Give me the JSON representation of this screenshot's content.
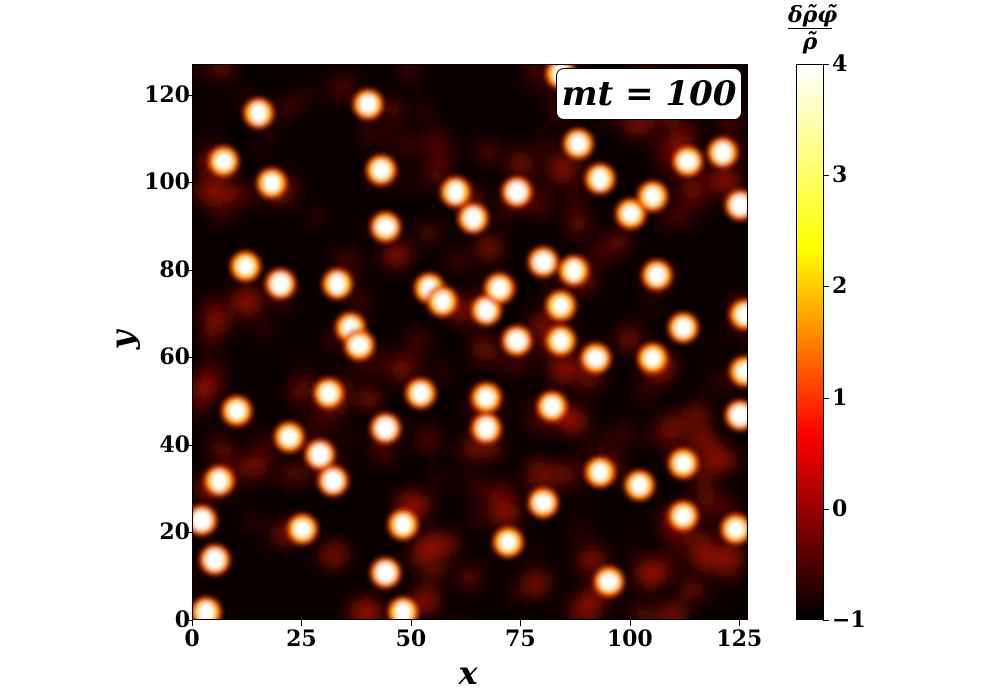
{
  "chart_data": {
    "type": "heatmap",
    "title": "",
    "xlabel": "x",
    "ylabel": "y",
    "xlim": [
      0,
      127
    ],
    "ylim": [
      0,
      127
    ],
    "x_ticks": [
      "0",
      "25",
      "50",
      "75",
      "100",
      "125"
    ],
    "y_ticks": [
      "0",
      "20",
      "40",
      "60",
      "80",
      "100",
      "120"
    ],
    "x_tick_values": [
      0,
      25,
      50,
      75,
      100,
      125
    ],
    "y_tick_values": [
      0,
      20,
      40,
      60,
      80,
      100,
      120
    ],
    "annotation": "mt = 100",
    "colorbar": {
      "label_numerator": "δρ̃φ̃",
      "label_denominator": "ρ̃",
      "range": [
        -1,
        4
      ],
      "ticks": [
        "4",
        "3",
        "2",
        "1",
        "0",
        "−1"
      ],
      "tick_values": [
        4,
        3,
        2,
        1,
        0,
        -1
      ],
      "colormap": "hot",
      "colors": [
        "#000000",
        "#ff0000",
        "#ffff00",
        "#ffffff"
      ]
    },
    "bright_peaks": [
      {
        "x": 3,
        "y": 2
      },
      {
        "x": 5,
        "y": 14
      },
      {
        "x": 6,
        "y": 32
      },
      {
        "x": 7,
        "y": 105
      },
      {
        "x": 10,
        "y": 48
      },
      {
        "x": 12,
        "y": 81
      },
      {
        "x": 15,
        "y": 116
      },
      {
        "x": 18,
        "y": 100
      },
      {
        "x": 20,
        "y": 77
      },
      {
        "x": 22,
        "y": 42
      },
      {
        "x": 25,
        "y": 21
      },
      {
        "x": 29,
        "y": 38
      },
      {
        "x": 31,
        "y": 52
      },
      {
        "x": 33,
        "y": 77
      },
      {
        "x": 36,
        "y": 67
      },
      {
        "x": 38,
        "y": 63
      },
      {
        "x": 40,
        "y": 118
      },
      {
        "x": 43,
        "y": 103
      },
      {
        "x": 44,
        "y": 11
      },
      {
        "x": 44,
        "y": 44
      },
      {
        "x": 44,
        "y": 90
      },
      {
        "x": 48,
        "y": 22
      },
      {
        "x": 48,
        "y": 2
      },
      {
        "x": 52,
        "y": 52
      },
      {
        "x": 54,
        "y": 76
      },
      {
        "x": 57,
        "y": 73
      },
      {
        "x": 60,
        "y": 98
      },
      {
        "x": 64,
        "y": 92
      },
      {
        "x": 67,
        "y": 71
      },
      {
        "x": 67,
        "y": 51
      },
      {
        "x": 67,
        "y": 44
      },
      {
        "x": 70,
        "y": 76
      },
      {
        "x": 72,
        "y": 18
      },
      {
        "x": 74,
        "y": 64
      },
      {
        "x": 74,
        "y": 98
      },
      {
        "x": 80,
        "y": 27
      },
      {
        "x": 80,
        "y": 82
      },
      {
        "x": 82,
        "y": 49
      },
      {
        "x": 84,
        "y": 64
      },
      {
        "x": 84,
        "y": 72
      },
      {
        "x": 87,
        "y": 80
      },
      {
        "x": 88,
        "y": 109
      },
      {
        "x": 92,
        "y": 60
      },
      {
        "x": 93,
        "y": 101
      },
      {
        "x": 93,
        "y": 34
      },
      {
        "x": 95,
        "y": 9
      },
      {
        "x": 100,
        "y": 93
      },
      {
        "x": 102,
        "y": 31
      },
      {
        "x": 105,
        "y": 60
      },
      {
        "x": 105,
        "y": 97
      },
      {
        "x": 106,
        "y": 79
      },
      {
        "x": 112,
        "y": 67
      },
      {
        "x": 112,
        "y": 24
      },
      {
        "x": 112,
        "y": 36
      },
      {
        "x": 113,
        "y": 105
      },
      {
        "x": 121,
        "y": 107
      },
      {
        "x": 125,
        "y": 95
      },
      {
        "x": 125,
        "y": 47
      },
      {
        "x": 124,
        "y": 21
      },
      {
        "x": 126,
        "y": 57
      },
      {
        "x": 126,
        "y": 70
      },
      {
        "x": 2,
        "y": 23
      },
      {
        "x": 84,
        "y": 125
      },
      {
        "x": 32,
        "y": 32
      }
    ]
  }
}
